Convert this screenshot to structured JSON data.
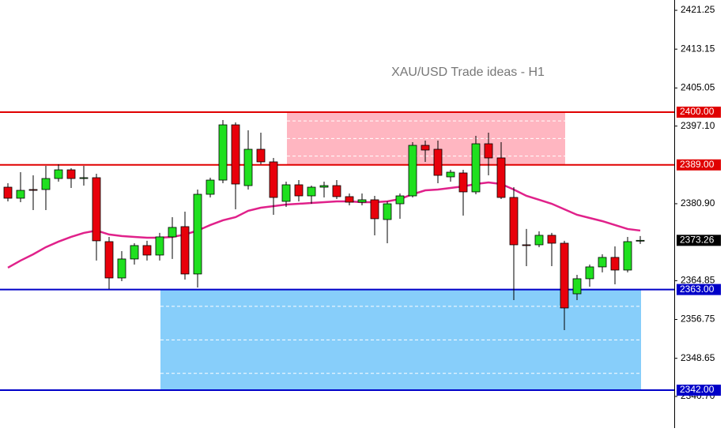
{
  "chart_data": {
    "type": "candlestick",
    "title": "XAU/USD Trade ideas - H1",
    "ylim": [
      2334.1,
      2423.4
    ],
    "yticks": [
      2421.25,
      2413.15,
      2405.05,
      {
        "value": 2397.1,
        "label": "2397.10"
      },
      {
        "value": 2380.9,
        "label": "2380.90"
      },
      2364.85,
      2356.75,
      2348.65,
      {
        "value": 2340.7,
        "label": "2340.70"
      }
    ],
    "up_color": "#1fe01f",
    "down_color": "#e8000b",
    "open": [
      2384.35,
      2382.05,
      2383.86,
      2383.86,
      2386.16,
      2387.97,
      2386.16,
      2386.33,
      2372.99,
      2365.41,
      2369.37,
      2372.17,
      2370.19,
      2373.98,
      2376.12,
      2366.24,
      2382.87,
      2385.83,
      2397.36,
      2384.68,
      2392.26,
      2389.63,
      2381.39,
      2384.85,
      2382.54,
      2384.35,
      2384.68,
      2382.38,
      2381.22,
      2381.72,
      2377.6,
      2380.89,
      2382.54,
      2393.08,
      2392.26,
      2386.5,
      2387.32,
      2383.37,
      2393.41,
      2390.45,
      2382.21,
      2372.33,
      2372.33,
      2374.31,
      2372.66,
      2362.11,
      2365.25,
      2367.72,
      2369.7,
      2367.06,
      2373.16
    ],
    "high": [
      2385.18,
      2387.48,
      2386.82,
      2388.8,
      2389.13,
      2388.3,
      2388.8,
      2387.15,
      2373.98,
      2371.01,
      2372.66,
      2373.16,
      2374.81,
      2378.1,
      2379.25,
      2383.86,
      2386.33,
      2398.35,
      2397.86,
      2396.21,
      2395.72,
      2390.45,
      2385.51,
      2385.83,
      2384.68,
      2385.51,
      2385.83,
      2383.04,
      2383.04,
      2382.54,
      2381.39,
      2383.04,
      2393.74,
      2394.07,
      2394.07,
      2387.97,
      2387.97,
      2395.06,
      2395.72,
      2393.74,
      2384.35,
      2375.63,
      2375.14,
      2374.81,
      2373.16,
      2366.07,
      2368.21,
      2370.35,
      2372.0,
      2373.98,
      2374.15
    ],
    "low": [
      2381.39,
      2381.22,
      2379.58,
      2379.58,
      2385.51,
      2384.19,
      2384.68,
      2369.04,
      2363.1,
      2364.75,
      2368.21,
      2369.04,
      2369.04,
      2369.37,
      2365.08,
      2363.43,
      2382.21,
      2385.18,
      2379.74,
      2383.86,
      2389.13,
      2378.59,
      2380.24,
      2381.39,
      2380.89,
      2382.21,
      2381.88,
      2380.56,
      2380.56,
      2374.31,
      2372.66,
      2377.77,
      2382.21,
      2389.63,
      2385.18,
      2385.51,
      2378.43,
      2382.87,
      2386.82,
      2381.88,
      2360.79,
      2367.88,
      2371.84,
      2367.88,
      2354.54,
      2360.79,
      2363.6,
      2366.57,
      2364.09,
      2366.57,
      2372.5
    ],
    "close": [
      2382.05,
      2383.69,
      2383.69,
      2386.16,
      2387.97,
      2386.16,
      2386.33,
      2373.16,
      2365.41,
      2369.37,
      2372.17,
      2370.19,
      2373.98,
      2375.96,
      2366.24,
      2382.87,
      2385.83,
      2397.36,
      2385.01,
      2392.26,
      2389.63,
      2382.21,
      2384.85,
      2382.54,
      2384.35,
      2384.68,
      2382.38,
      2381.22,
      2381.72,
      2377.77,
      2380.89,
      2382.54,
      2393.08,
      2392.1,
      2386.82,
      2387.48,
      2383.37,
      2393.41,
      2390.45,
      2382.21,
      2372.33,
      2372.17,
      2374.31,
      2372.66,
      2359.15,
      2365.25,
      2367.72,
      2369.7,
      2367.06,
      2372.99,
      2373.26
    ],
    "moving_average": {
      "color": "#e0218a",
      "values": [
        2367.56,
        2369.04,
        2370.35,
        2371.84,
        2372.99,
        2373.98,
        2374.81,
        2375.3,
        2374.48,
        2374.15,
        2373.98,
        2373.81,
        2373.81,
        2373.98,
        2374.48,
        2375.3,
        2376.45,
        2377.44,
        2378.1,
        2379.42,
        2380.07,
        2380.4,
        2380.73,
        2380.89,
        2381.06,
        2381.22,
        2381.39,
        2381.39,
        2381.22,
        2381.22,
        2381.39,
        2381.88,
        2382.87,
        2383.69,
        2383.86,
        2384.19,
        2384.52,
        2385.01,
        2385.34,
        2385.01,
        2383.86,
        2382.54,
        2381.72,
        2380.89,
        2379.74,
        2378.59,
        2377.93,
        2377.27,
        2376.45,
        2375.63,
        2375.3
      ]
    },
    "zones": [
      {
        "low": 2389,
        "high": 2400,
        "color": "#ffb6c1"
      },
      {
        "low": 2342,
        "high": 2363,
        "color": "#87cefa"
      }
    ],
    "levels": [
      {
        "value": 2400,
        "label": "2400.00",
        "color": "#e00000"
      },
      {
        "value": 2389,
        "label": "2389.00",
        "color": "#e00000"
      },
      {
        "value": 2363,
        "label": "2363.00",
        "color": "#0000c8"
      },
      {
        "value": 2342,
        "label": "2342.00",
        "color": "#0000c8"
      }
    ],
    "current_price": {
      "value": 2373.26,
      "label": "2373.26",
      "color": "#000000"
    }
  }
}
